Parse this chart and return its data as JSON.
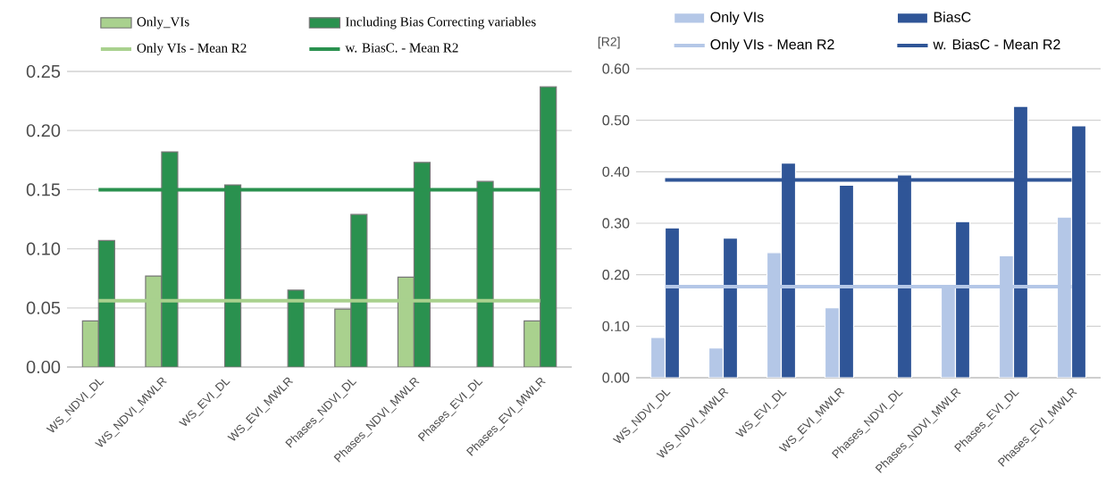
{
  "chart_data": [
    {
      "type": "bar",
      "categories": [
        "WS_NDVI_DL",
        "WS_NDVI_MWLR",
        "WS_EVI_DL",
        "WS_EVI_MWLR",
        "Phases_NDVI_DL",
        "Phases_NDVI_MWLR",
        "Phases_EVI_DL",
        "Phases_EVI_MWLR"
      ],
      "series": [
        {
          "name": "Only_VIs",
          "color": "#a9d18e",
          "values": [
            0.039,
            0.077,
            null,
            null,
            0.049,
            0.076,
            null,
            0.039
          ]
        },
        {
          "name": "Including Bias Correcting variables",
          "color": "#2a914f",
          "values": [
            0.107,
            0.182,
            0.154,
            0.065,
            0.129,
            0.173,
            0.157,
            0.237
          ]
        },
        {
          "name": "Only VIs - Mean R2",
          "type": "line",
          "color": "#a9d18e",
          "values": [
            0.056,
            0.056,
            0.056,
            0.056,
            0.056,
            0.056,
            0.056,
            0.056
          ]
        },
        {
          "name": "w. BiasC. - Mean R2",
          "type": "line",
          "color": "#2a914f",
          "values": [
            0.15,
            0.15,
            0.15,
            0.15,
            0.15,
            0.15,
            0.15,
            0.15
          ]
        }
      ],
      "ylim": [
        0,
        0.25
      ],
      "yticks": [
        {
          "value": 0,
          "label": "0.00"
        },
        {
          "value": 0.05,
          "label": "0.05"
        },
        {
          "value": 0.1,
          "label": "0.10"
        },
        {
          "value": 0.15,
          "label": "0.15"
        },
        {
          "value": 0.2,
          "label": "0.20"
        },
        {
          "value": 0.25,
          "label": "0.25"
        }
      ],
      "grid": "y",
      "legend": "top"
    },
    {
      "type": "bar",
      "ylabel": "[R2]",
      "categories": [
        "WS_NDVI_DL",
        "WS_NDVI_MWLR",
        "WS_EVI_DL",
        "WS_EVI_MWLR",
        "Phases_NDVI_DL",
        "Phases_NDVI_MWLR",
        "Phases_EVI_DL",
        "Phases_EVI_MWLR"
      ],
      "series": [
        {
          "name": "Only VIs",
          "color": "#b4c7e7",
          "values": [
            0.078,
            0.058,
            0.243,
            0.136,
            null,
            0.177,
            0.237,
            0.312
          ]
        },
        {
          "name": "BiasC",
          "color": "#2f5597",
          "values": [
            0.291,
            0.271,
            0.417,
            0.374,
            0.394,
            0.303,
            0.527,
            0.489
          ]
        },
        {
          "name": "Only VIs - Mean R2",
          "type": "line",
          "color": "#b4c7e7",
          "values": [
            0.177,
            0.177,
            0.177,
            0.177,
            0.177,
            0.177,
            0.177,
            0.177
          ]
        },
        {
          "name": "w. BiasC - Mean R2",
          "type": "line",
          "color": "#2f5597",
          "values": [
            0.384,
            0.384,
            0.384,
            0.384,
            0.384,
            0.384,
            0.384,
            0.384
          ]
        }
      ],
      "ylim": [
        0,
        0.6
      ],
      "yticks": [
        {
          "value": 0,
          "label": "0.00"
        },
        {
          "value": 0.1,
          "label": "0.10"
        },
        {
          "value": 0.2,
          "label": "0.20"
        },
        {
          "value": 0.3,
          "label": "0.30"
        },
        {
          "value": 0.4,
          "label": "0.40"
        },
        {
          "value": 0.5,
          "label": "0.50"
        },
        {
          "value": 0.6,
          "label": "0.60"
        }
      ],
      "grid": "y",
      "legend": "top"
    }
  ]
}
